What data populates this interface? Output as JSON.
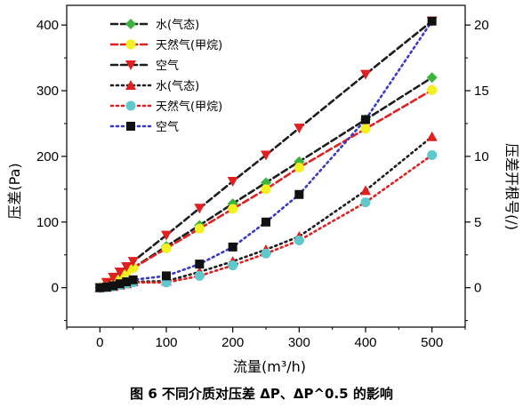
{
  "chart_data": {
    "type": "line",
    "xlabel": "流量(m³/h)",
    "ylabel_left": "压差(Pa)",
    "ylabel_right": "压差开根号(/)",
    "x_ticks": [
      "0",
      "100",
      "200",
      "300",
      "400",
      "500"
    ],
    "y_left_ticks": [
      "0",
      "100",
      "200",
      "300",
      "400"
    ],
    "y_right_ticks": [
      "0",
      "5",
      "10",
      "15",
      "20"
    ],
    "xlim": [
      -50,
      550
    ],
    "ylim_left": [
      -60,
      430
    ],
    "ylim_right": [
      -3.0,
      21.5
    ],
    "series": [
      {
        "name": "水(气态)",
        "axis": "left",
        "color": "#1e1e1e",
        "marker_color": "#3cb33c",
        "marker": "diamond",
        "line": "dashed",
        "x": [
          0,
          10,
          20,
          30,
          40,
          50,
          100,
          150,
          200,
          250,
          300,
          400,
          500
        ],
        "y": [
          0,
          6,
          12,
          18,
          24,
          30,
          63,
          95,
          128,
          160,
          192,
          256,
          320
        ]
      },
      {
        "name": "天然气(甲烷)",
        "axis": "left",
        "color": "#e02020",
        "marker_color": "#f2f020",
        "marker": "circle",
        "line": "dashed",
        "x": [
          0,
          10,
          20,
          30,
          40,
          50,
          100,
          150,
          200,
          250,
          300,
          400,
          500
        ],
        "y": [
          0,
          6,
          12,
          18,
          24,
          30,
          60,
          90,
          120,
          150,
          183,
          242,
          301
        ]
      },
      {
        "name": "空气",
        "axis": "left",
        "color": "#1e1e1e",
        "marker_color": "#e02020",
        "marker": "triangle-down",
        "line": "dashed",
        "x": [
          0,
          10,
          20,
          30,
          40,
          50,
          100,
          150,
          200,
          250,
          300,
          400,
          500
        ],
        "y": [
          0,
          8,
          16,
          24,
          32,
          40,
          80,
          121,
          162,
          202,
          243,
          325,
          406
        ]
      },
      {
        "name": "水(气态)",
        "axis": "right",
        "color": "#1e1e1e",
        "marker_color": "#e02020",
        "marker": "triangle-up",
        "line": "dotted",
        "x": [
          0,
          10,
          20,
          30,
          40,
          50,
          100,
          150,
          200,
          250,
          300,
          400,
          500
        ],
        "y": [
          0,
          0.03,
          0.1,
          0.2,
          0.3,
          0.45,
          0.5,
          1.2,
          2.0,
          2.9,
          3.9,
          7.4,
          11.5
        ]
      },
      {
        "name": "天然气(甲烷)",
        "axis": "right",
        "color": "#e02020",
        "marker_color": "#5fc8cc",
        "marker": "circle",
        "line": "dotted",
        "x": [
          0,
          10,
          20,
          30,
          40,
          50,
          100,
          150,
          200,
          250,
          300,
          400,
          500
        ],
        "y": [
          0,
          0.03,
          0.1,
          0.2,
          0.3,
          0.4,
          0.4,
          0.9,
          1.7,
          2.6,
          3.6,
          6.5,
          10.1
        ]
      },
      {
        "name": "空气",
        "axis": "right",
        "color": "#3a3ac8",
        "marker_color": "#111111",
        "marker": "square",
        "line": "dotted",
        "x": [
          0,
          10,
          20,
          30,
          40,
          50,
          100,
          150,
          200,
          250,
          300,
          400,
          500
        ],
        "y": [
          0,
          0.05,
          0.15,
          0.3,
          0.45,
          0.6,
          0.9,
          1.8,
          3.1,
          5.0,
          7.1,
          12.8,
          20.3
        ]
      }
    ]
  },
  "caption": "图 6    不同介质对压差 ΔP、ΔP^0.5 的影响"
}
